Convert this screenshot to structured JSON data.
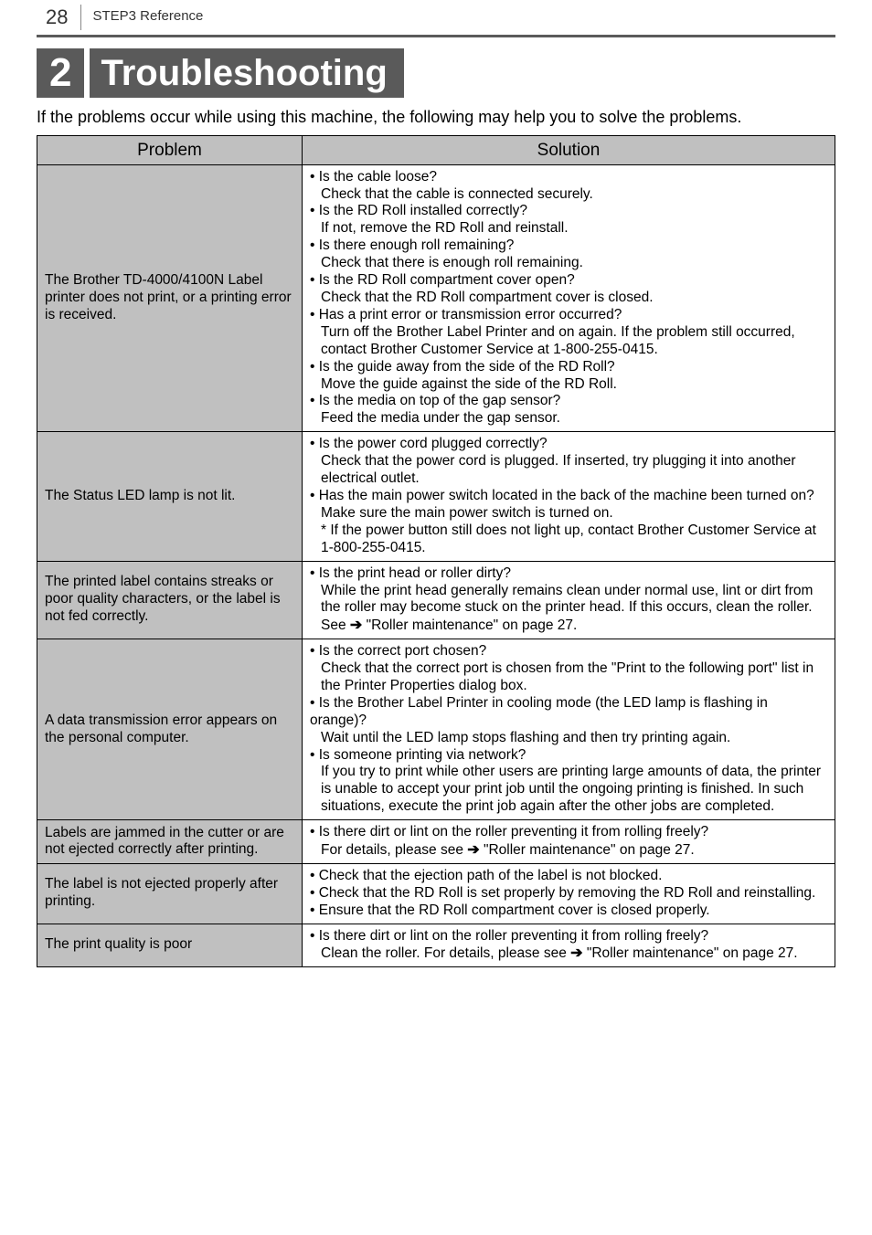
{
  "header": {
    "page_number": "28",
    "step_label": "STEP3 Reference"
  },
  "title": {
    "number": "2",
    "text": "Troubleshooting"
  },
  "intro": "If the problems occur while using this machine, the following may help you to solve the problems.",
  "table": {
    "columns": [
      "Problem",
      "Solution"
    ],
    "rows": [
      {
        "problem": "The Brother TD-4000/4100N Label printer does not print, or a printing error is received.",
        "solution_lines": [
          "• Is the cable loose?",
          "  Check that the cable is connected securely.",
          "• Is the RD Roll installed correctly?",
          "  If not, remove the RD Roll and reinstall.",
          "• Is there enough roll remaining?",
          "  Check that there is enough roll remaining.",
          "• Is the RD Roll compartment cover open?",
          "  Check that the RD Roll compartment cover is closed.",
          "• Has a print error or transmission error occurred?",
          "  Turn off the Brother Label Printer and on again. If the problem still occurred, contact Brother Customer Service at 1-800-255-0415.",
          "• Is the guide away from the side of the RD Roll?",
          "  Move the guide against the side of the RD Roll.",
          "• Is the media on top of the gap sensor?",
          "  Feed the media under the gap sensor."
        ]
      },
      {
        "problem": "The Status LED lamp is not lit.",
        "solution_lines": [
          "• Is the power cord plugged correctly?",
          "  Check that the power cord is plugged. If inserted, try plugging it into another electrical outlet.",
          "• Has the main power switch located in the back of the machine been turned on?",
          "  Make sure the main power switch is turned on.",
          "  * If the power button still does not light up, contact Brother Customer Service at 1-800-255-0415."
        ]
      },
      {
        "problem": "The printed label contains streaks or poor quality characters, or the label is not fed correctly.",
        "solution_lines": [
          "• Is the print head or roller dirty?",
          "  While the print head generally remains clean under normal use, lint or dirt from the roller may become stuck on the printer head. If this occurs, clean the roller.",
          "  See ➔ \"Roller maintenance\" on page 27."
        ]
      },
      {
        "problem": "A data transmission error appears on the personal computer.",
        "solution_lines": [
          "• Is the correct port chosen?",
          "  Check that the correct port is chosen from the \"Print to the following port\" list in the Printer Properties dialog box.",
          "• Is the Brother Label Printer in cooling mode (the LED lamp is flashing in orange)?",
          "  Wait until the LED lamp stops flashing and then try printing again.",
          "• Is someone printing via network?",
          "  If you try to print while other users are printing large amounts of data, the printer is unable to accept your print job until the ongoing printing is finished. In such situations, execute the print job again after the other jobs are completed."
        ]
      },
      {
        "problem": "Labels are jammed in the cutter or are not ejected correctly after printing.",
        "solution_lines": [
          "• Is there dirt or lint on the roller preventing it from rolling freely?",
          "  For details, please see ➔ \"Roller maintenance\" on page 27."
        ]
      },
      {
        "problem": "The label is not ejected properly after printing.",
        "solution_lines": [
          "• Check that the ejection path of the label is not blocked.",
          "• Check that the RD Roll is set properly by removing the RD Roll and reinstalling.",
          "• Ensure that the RD Roll compartment cover is closed properly."
        ]
      },
      {
        "problem": "The print quality is poor",
        "solution_lines": [
          "• Is there dirt or lint on the roller preventing it from rolling freely?",
          "  Clean the roller. For details, please see ➔ \"Roller maintenance\" on page 27."
        ]
      }
    ]
  }
}
